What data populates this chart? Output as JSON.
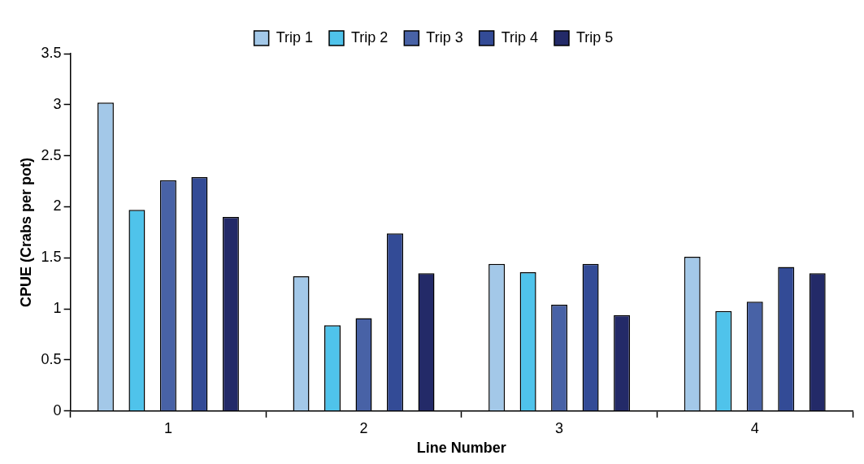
{
  "chart_data": {
    "type": "bar",
    "xlabel": "Line Number",
    "ylabel": "CPUE (Crabs per pot)",
    "categories": [
      "1",
      "2",
      "3",
      "4"
    ],
    "series": [
      {
        "name": "Trip 1",
        "color": "#a3c8e8",
        "values": [
          3.02,
          1.32,
          1.44,
          1.51
        ]
      },
      {
        "name": "Trip 2",
        "color": "#4fc3eb",
        "values": [
          1.97,
          0.84,
          1.36,
          0.98
        ]
      },
      {
        "name": "Trip 3",
        "color": "#4862a6",
        "values": [
          2.26,
          0.91,
          1.04,
          1.07
        ]
      },
      {
        "name": "Trip 4",
        "color": "#334b96",
        "values": [
          2.29,
          1.74,
          1.44,
          1.41
        ]
      },
      {
        "name": "Trip 5",
        "color": "#232a68",
        "values": [
          1.9,
          1.35,
          0.94,
          1.35
        ]
      }
    ],
    "ylim": [
      0,
      3.5
    ],
    "yticks": [
      0,
      0.5,
      1,
      1.5,
      2,
      2.5,
      3,
      3.5
    ],
    "grid": false,
    "legend": "top"
  }
}
